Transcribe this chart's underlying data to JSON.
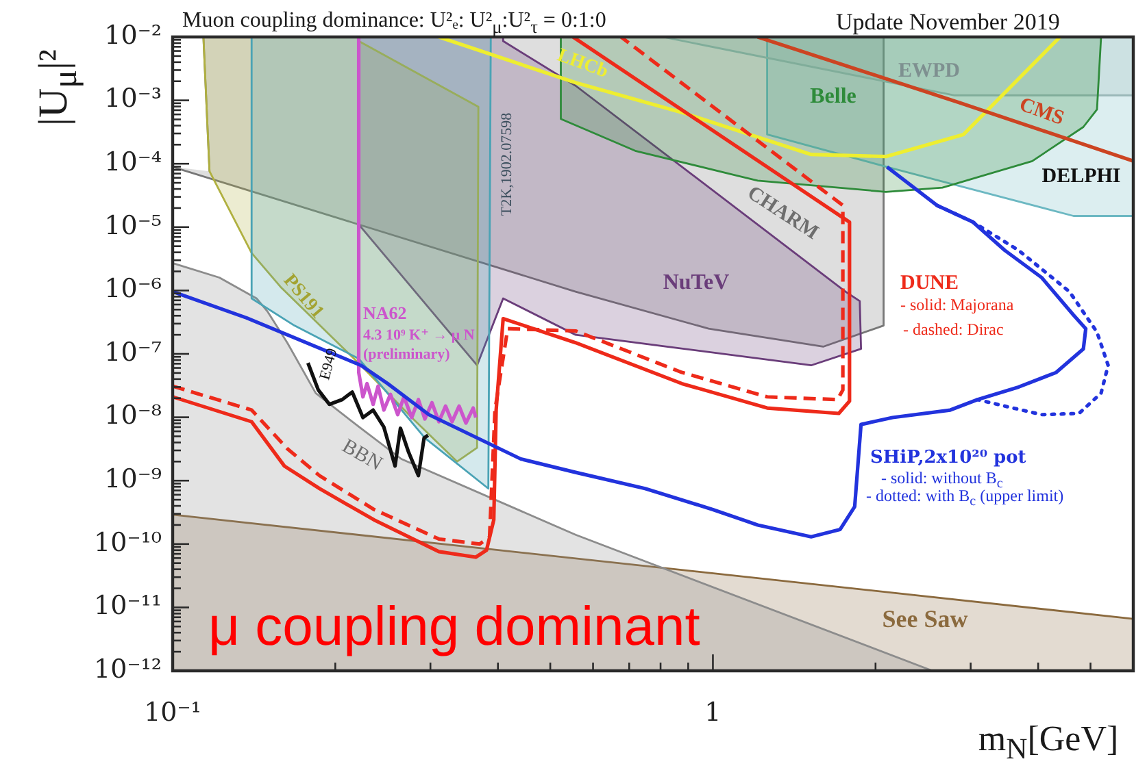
{
  "chart_data": {
    "type": "line",
    "title": "Muon coupling dominance: U²ₑ: U²$_{μ}$:U²$_{τ}$ = 0:1:0",
    "subtitle": "Update November 2019",
    "xlabel": "m$_{N}$[GeV]",
    "ylabel": "|U$_{μ}$|²",
    "annotations": [
      "μ coupling dominant",
      "- solid: Majorana",
      "- dashed: Dirac",
      "- solid: without B$_{c}$",
      "- dotted: with B$_{c}$ (upper limit)",
      "4.3 10⁹ K⁺ → μ N",
      "(preliminary)"
    ],
    "log": "xy",
    "legend": false,
    "marker": "none",
    "line_style": "solid",
    "xlim": [
      0.1,
      6.0
    ],
    "ylim": [
      1e-12,
      0.01
    ],
    "xticks": [
      {
        "value": 0.1,
        "label": "10⁻¹"
      },
      {
        "value": 0.2,
        "label": null
      },
      {
        "value": 0.3,
        "label": null
      },
      {
        "value": 0.4,
        "label": null
      },
      {
        "value": 0.5,
        "label": null
      },
      {
        "value": 0.6,
        "label": null
      },
      {
        "value": 0.7,
        "label": null
      },
      {
        "value": 0.8,
        "label": null
      },
      {
        "value": 0.9,
        "label": null
      },
      {
        "value": 1,
        "label": "1"
      },
      {
        "value": 2,
        "label": null
      },
      {
        "value": 3,
        "label": null
      },
      {
        "value": 4,
        "label": null
      },
      {
        "value": 5,
        "label": null
      }
    ],
    "yticks": [
      {
        "value": 1e-12,
        "label": "10⁻¹²"
      },
      {
        "value": 2e-12,
        "label": null
      },
      {
        "value": 3e-12,
        "label": null
      },
      {
        "value": 4e-12,
        "label": null
      },
      {
        "value": 5e-12,
        "label": null
      },
      {
        "value": 6e-12,
        "label": null
      },
      {
        "value": 7e-12,
        "label": null
      },
      {
        "value": 8e-12,
        "label": null
      },
      {
        "value": 9e-12,
        "label": null
      },
      {
        "value": 1e-11,
        "label": "10⁻¹¹"
      },
      {
        "value": 2e-11,
        "label": null
      },
      {
        "value": 3e-11,
        "label": null
      },
      {
        "value": 4e-11,
        "label": null
      },
      {
        "value": 5e-11,
        "label": null
      },
      {
        "value": 6e-11,
        "label": null
      },
      {
        "value": 7e-11,
        "label": null
      },
      {
        "value": 8e-11,
        "label": null
      },
      {
        "value": 9e-11,
        "label": null
      },
      {
        "value": 1e-10,
        "label": "10⁻¹⁰"
      },
      {
        "value": 2e-10,
        "label": null
      },
      {
        "value": 3e-10,
        "label": null
      },
      {
        "value": 4e-10,
        "label": null
      },
      {
        "value": 5e-10,
        "label": null
      },
      {
        "value": 6e-10,
        "label": null
      },
      {
        "value": 7e-10,
        "label": null
      },
      {
        "value": 8e-10,
        "label": null
      },
      {
        "value": 9e-10,
        "label": null
      },
      {
        "value": 1e-09,
        "label": "10⁻⁹"
      },
      {
        "value": 2e-09,
        "label": null
      },
      {
        "value": 3e-09,
        "label": null
      },
      {
        "value": 4e-09,
        "label": null
      },
      {
        "value": 5e-09,
        "label": null
      },
      {
        "value": 6e-09,
        "label": null
      },
      {
        "value": 7e-09,
        "label": null
      },
      {
        "value": 8e-09,
        "label": null
      },
      {
        "value": 9e-09,
        "label": null
      },
      {
        "value": 1e-08,
        "label": "10⁻⁸"
      },
      {
        "value": 2e-08,
        "label": null
      },
      {
        "value": 3e-08,
        "label": null
      },
      {
        "value": 4e-08,
        "label": null
      },
      {
        "value": 5e-08,
        "label": null
      },
      {
        "value": 6e-08,
        "label": null
      },
      {
        "value": 7e-08,
        "label": null
      },
      {
        "value": 8e-08,
        "label": null
      },
      {
        "value": 9e-08,
        "label": null
      },
      {
        "value": 1e-07,
        "label": "10⁻⁷"
      },
      {
        "value": 2e-07,
        "label": null
      },
      {
        "value": 3e-07,
        "label": null
      },
      {
        "value": 4e-07,
        "label": null
      },
      {
        "value": 5e-07,
        "label": null
      },
      {
        "value": 6e-07,
        "label": null
      },
      {
        "value": 7e-07,
        "label": null
      },
      {
        "value": 8e-07,
        "label": null
      },
      {
        "value": 9e-07,
        "label": null
      },
      {
        "value": 1e-06,
        "label": "10⁻⁶"
      },
      {
        "value": 2e-06,
        "label": null
      },
      {
        "value": 3e-06,
        "label": null
      },
      {
        "value": 4e-06,
        "label": null
      },
      {
        "value": 5e-06,
        "label": null
      },
      {
        "value": 6e-06,
        "label": null
      },
      {
        "value": 7e-06,
        "label": null
      },
      {
        "value": 8e-06,
        "label": null
      },
      {
        "value": 9e-06,
        "label": null
      },
      {
        "value": 1e-05,
        "label": "10⁻⁵"
      },
      {
        "value": 2e-05,
        "label": null
      },
      {
        "value": 3e-05,
        "label": null
      },
      {
        "value": 4e-05,
        "label": null
      },
      {
        "value": 5e-05,
        "label": null
      },
      {
        "value": 6e-05,
        "label": null
      },
      {
        "value": 7e-05,
        "label": null
      },
      {
        "value": 8e-05,
        "label": null
      },
      {
        "value": 9e-05,
        "label": null
      },
      {
        "value": 0.0001,
        "label": "10⁻⁴"
      },
      {
        "value": 0.0002,
        "label": null
      },
      {
        "value": 0.0003,
        "label": null
      },
      {
        "value": 0.0004,
        "label": null
      },
      {
        "value": 0.0005,
        "label": null
      },
      {
        "value": 0.0006,
        "label": null
      },
      {
        "value": 0.0007,
        "label": null
      },
      {
        "value": 0.0008,
        "label": null
      },
      {
        "value": 0.0009,
        "label": null
      },
      {
        "value": 0.001,
        "label": "10⁻³"
      },
      {
        "value": 0.002,
        "label": null
      },
      {
        "value": 0.003,
        "label": null
      },
      {
        "value": 0.004,
        "label": null
      },
      {
        "value": 0.005,
        "label": null
      },
      {
        "value": 0.006,
        "label": null
      },
      {
        "value": 0.007,
        "label": null
      },
      {
        "value": 0.008,
        "label": null
      },
      {
        "value": 0.009,
        "label": null
      },
      {
        "value": 0.01,
        "label": "10⁻²"
      }
    ],
    "series": [
      {
        "name": "See Saw",
        "type": "area",
        "color": "#8b6a3e",
        "x": [
          0.1,
          6.0,
          6.0,
          0.1
        ],
        "values": [
          2.9e-10,
          6.6e-12,
          1e-12,
          1e-12
        ]
      },
      {
        "name": "BBN",
        "type": "area",
        "color": "#8c8c8c",
        "x": [
          0.1,
          0.122,
          0.143,
          0.15,
          0.163,
          0.184,
          0.223,
          0.265,
          0.557,
          2.55,
          0.1
        ],
        "values": [
          2.7e-06,
          1.6e-06,
          7.5e-07,
          4.6e-07,
          1.5e-07,
          2.4e-08,
          6.7e-09,
          2.2e-09,
          1.4e-10,
          1e-12,
          1e-12
        ]
      },
      {
        "name": "CHARM",
        "type": "area",
        "color": "#777777",
        "x": [
          0.1,
          0.221,
          0.557,
          0.982,
          1.6,
          2.07,
          2.07,
          0.114,
          0.117
        ],
        "values": [
          8.9e-05,
          1.1e-05,
          9.6e-07,
          2.5e-07,
          1.3e-07,
          2.8e-07,
          0.01,
          0.01,
          7.6e-05
        ]
      },
      {
        "name": "NuTeV",
        "type": "area",
        "color": "#6a3d7a",
        "x": [
          0.221,
          0.221,
          0.366,
          0.409,
          0.557,
          1.52,
          1.88,
          1.87,
          1.76,
          0.557,
          0.409,
          0.409
        ],
        "values": [
          0.01,
          1.1e-05,
          6.6e-08,
          7.5e-07,
          2e-07,
          6.6e-08,
          1.2e-07,
          6.8e-07,
          9.6e-07,
          0.0017,
          0.0086,
          0.01
        ]
      },
      {
        "name": "PS191",
        "type": "area",
        "color": "#b0b040",
        "x": [
          0.114,
          0.117,
          0.14,
          0.159,
          0.223,
          0.277,
          0.336,
          0.366,
          0.368,
          0.221,
          0.221
        ],
        "values": [
          0.01,
          7.6e-05,
          3.9e-06,
          1.1e-06,
          6.6e-08,
          9.9e-09,
          2e-09,
          3.3e-09,
          0.00079,
          0.0086,
          0.01
        ]
      },
      {
        "name": "T2K,1902.07598",
        "type": "area",
        "color": "#4aa3b5",
        "x": [
          0.14,
          0.14,
          0.168,
          0.221,
          0.293,
          0.384,
          0.388
        ],
        "values": [
          0.01,
          7.5e-07,
          2.8e-07,
          8.4e-08,
          4.7e-09,
          7.5e-10,
          0.01
        ]
      },
      {
        "name": "DELPHI",
        "type": "area",
        "color": "#6cb8c2",
        "x": [
          1.26,
          1.26,
          2.1,
          4.65,
          6.0,
          6.0
        ],
        "values": [
          0.01,
          0.00029,
          8.9e-05,
          1.5e-05,
          1.5e-05,
          0.01
        ]
      },
      {
        "name": "EWPD",
        "type": "area",
        "color": "#9ab8b8",
        "x": [
          0.808,
          2.8,
          6.0,
          6.0
        ],
        "values": [
          0.01,
          0.0012,
          0.0012,
          0.01
        ]
      },
      {
        "name": "Belle",
        "type": "area",
        "color": "#2e8b3a",
        "x": [
          0.523,
          0.523,
          0.718,
          1.21,
          2.09,
          2.66,
          3.9,
          4.85,
          5.14,
          5.23
        ],
        "values": [
          0.01,
          0.00051,
          0.00016,
          5.4e-05,
          3.6e-05,
          4.2e-05,
          0.00011,
          0.00038,
          0.00072,
          0.01
        ]
      },
      {
        "name": "E949",
        "type": "line",
        "color": "#111111",
        "x": [
          0.178,
          0.186,
          0.195,
          0.206,
          0.215,
          0.225,
          0.235,
          0.246,
          0.258,
          0.264,
          0.273,
          0.285,
          0.292,
          0.297
        ],
        "values": [
          7.2e-08,
          2.7e-08,
          1.6e-08,
          1.9e-08,
          2.5e-08,
          9.9e-09,
          1.3e-08,
          7e-09,
          1.7e-09,
          6.7e-09,
          2.9e-09,
          1.2e-09,
          4.7e-09,
          5.2e-09
        ]
      },
      {
        "name": "NA62",
        "type": "line",
        "color": "#cc55cc",
        "x": [
          0.221,
          0.221,
          0.225,
          0.229,
          0.235,
          0.24,
          0.246,
          0.253,
          0.261,
          0.268,
          0.277,
          0.285,
          0.293,
          0.302,
          0.311,
          0.32,
          0.329,
          0.339,
          0.349,
          0.36,
          0.364
        ],
        "values": [
          0.01,
          5.1e-08,
          2.1e-08,
          3.4e-08,
          1.6e-08,
          3.1e-08,
          1.3e-08,
          2.3e-08,
          1.1e-08,
          2.1e-08,
          9.9e-09,
          1.9e-08,
          9.4e-09,
          1.7e-08,
          8.5e-09,
          1.5e-08,
          8.5e-09,
          1.5e-08,
          8.1e-09,
          1.4e-08,
          9.9e-09
        ]
      },
      {
        "name": "LHCb",
        "type": "line",
        "color": "#eeee30",
        "x": [
          0.311,
          0.557,
          0.889,
          1.52,
          2.09,
          2.91,
          4.39
        ],
        "values": [
          0.01,
          0.0019,
          0.00062,
          0.00014,
          0.00013,
          0.00029,
          0.01
        ]
      },
      {
        "name": "CMS",
        "type": "line",
        "color": "#cc4422",
        "x": [
          1.21,
          2.86,
          6.0
        ],
        "values": [
          0.01,
          0.00092,
          0.00011
        ]
      },
      {
        "name": "DUNE",
        "type": "line",
        "color": "#ee2a1a",
        "x": [
          0.1,
          0.14,
          0.161,
          0.187,
          0.236,
          0.311,
          0.364,
          0.381,
          0.393,
          0.397,
          0.409,
          0.557,
          0.876,
          1.26,
          1.71,
          1.79,
          1.79,
          0.551
        ],
        "values": [
          2.1e-08,
          8.5e-09,
          1.7e-09,
          7.5e-10,
          2.4e-10,
          7.6e-11,
          6.2e-11,
          8e-11,
          2.4e-10,
          1.3e-08,
          3.6e-07,
          1.5e-07,
          3.4e-08,
          1.4e-08,
          1.15e-08,
          1.8e-08,
          1.2e-05,
          0.01
        ]
      },
      {
        "type": "line",
        "color": "#ee2a1a",
        "line_style": "dashed",
        "x": [
          0.1,
          0.14,
          0.163,
          0.187,
          0.236,
          0.311,
          0.37,
          0.386,
          0.395,
          0.417,
          0.557,
          0.876,
          1.26,
          1.7,
          1.74,
          1.74,
          0.676
        ],
        "values": [
          3.1e-08,
          1.3e-08,
          3.2e-09,
          1.2e-09,
          3.5e-10,
          1.2e-10,
          1e-10,
          1.3e-10,
          1.3e-08,
          2.5e-07,
          2.3e-07,
          5.1e-08,
          2.1e-08,
          1.9e-08,
          2.7e-08,
          2.2e-05,
          0.01
        ]
      },
      {
        "name": "SHiP,2x10²⁰ pot",
        "type": "line",
        "color": "#2233dd",
        "x": [
          0.1,
          0.137,
          0.223,
          0.25,
          0.298,
          0.441,
          0.557,
          0.749,
          1.0,
          1.21,
          1.52,
          1.72,
          1.83,
          1.88,
          2.15,
          2.75,
          3.09,
          3.68,
          4.32,
          4.85,
          4.9,
          4.65,
          4.06,
          3.47,
          3.03,
          2.6,
          2.1
        ],
        "values": [
          9.6e-07,
          3.7e-07,
          6.6e-08,
          3.4e-08,
          1.1e-08,
          2.2e-09,
          1.35e-09,
          7.5e-10,
          3.5e-10,
          2e-10,
          1.3e-10,
          1.7e-10,
          3.9e-10,
          7.7e-09,
          9.9e-09,
          1.3e-08,
          1.9e-08,
          3e-08,
          5.1e-08,
          1.2e-07,
          2.5e-07,
          4.1e-07,
          1.6e-06,
          4.3e-06,
          1.2e-05,
          2.2e-05,
          8.9e-05
        ]
      },
      {
        "type": "line",
        "color": "#2233dd",
        "line_style": "dotted",
        "x": [
          2.6,
          3.03,
          3.68,
          4.57,
          5.14,
          5.39,
          5.23,
          4.76,
          4.06,
          3.47,
          3.09
        ],
        "values": [
          2.2e-05,
          1.2e-05,
          4.3e-06,
          9.6e-07,
          2.2e-07,
          6.6e-08,
          2.4e-08,
          1.15e-08,
          1.1e-08,
          1.5e-08,
          1.9e-08
        ]
      }
    ]
  }
}
